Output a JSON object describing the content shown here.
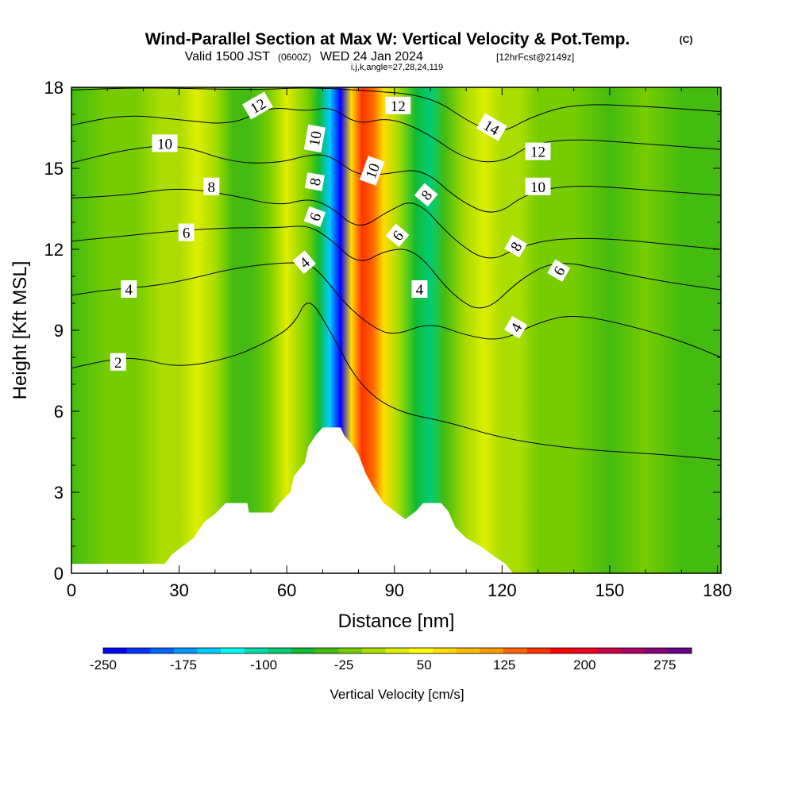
{
  "title": {
    "main": "Wind-Parallel Section at Max W: Vertical Velocity & Pot.Temp.",
    "copyright": "(C)",
    "valid_prefix": "Valid 1500 JST",
    "utc": "(0600Z)",
    "valid_suffix": "WED 24 Jan 2024",
    "fcst": "[12hrFcst@2149z]",
    "ijk": "i,j,k,angle=27,28,24,119"
  },
  "colors": {
    "background": "#ffffff",
    "terrain": "#ffffff",
    "contour": "#000000",
    "palette": [
      "#0000ff",
      "#0033ff",
      "#0066ff",
      "#0099ff",
      "#00ccff",
      "#00ffee",
      "#00ddaa",
      "#00cc77",
      "#11bb33",
      "#44bb11",
      "#77cc00",
      "#aadd00",
      "#ddee00",
      "#ffff00",
      "#ffdd00",
      "#ffbb00",
      "#ff9900",
      "#ff6600",
      "#ff3300",
      "#ff0000",
      "#ee0022",
      "#cc0044",
      "#aa0066",
      "#880077",
      "#660088"
    ]
  },
  "chart_data": {
    "type": "heatmap",
    "title": "Wind-Parallel Section at Max W: Vertical Velocity & Pot.Temp.",
    "xlabel": "Distance [nm]",
    "ylabel": "Height [Kft MSL]",
    "xlim": [
      0,
      181
    ],
    "ylim": [
      0,
      18
    ],
    "xticks": [
      "0",
      "30",
      "60",
      "90",
      "120",
      "150",
      "180"
    ],
    "yticks": [
      "0",
      "3",
      "6",
      "9",
      "12",
      "15",
      "18"
    ],
    "colorbar": {
      "label": "Vertical Velocity [cm/s]",
      "min": -250,
      "max": 300,
      "step": 25,
      "ticks": [
        "-250",
        "-175",
        "-100",
        "-25",
        "50",
        "125",
        "200",
        "275"
      ]
    },
    "vertical_velocity_bands": [
      {
        "x": 0,
        "w": -5
      },
      {
        "x": 10,
        "w": 5
      },
      {
        "x": 18,
        "w": 10
      },
      {
        "x": 25,
        "w": 30
      },
      {
        "x": 30,
        "w": 45
      },
      {
        "x": 35,
        "w": 50
      },
      {
        "x": 40,
        "w": 30
      },
      {
        "x": 45,
        "w": -20
      },
      {
        "x": 50,
        "w": -10
      },
      {
        "x": 55,
        "w": 10
      },
      {
        "x": 60,
        "w": 55
      },
      {
        "x": 63,
        "w": 40
      },
      {
        "x": 66,
        "w": 0
      },
      {
        "x": 69,
        "w": -50
      },
      {
        "x": 72,
        "w": -150
      },
      {
        "x": 75,
        "w": -230
      },
      {
        "x": 78,
        "w": 120
      },
      {
        "x": 81,
        "w": 220
      },
      {
        "x": 84,
        "w": 190
      },
      {
        "x": 87,
        "w": 120
      },
      {
        "x": 91,
        "w": 40
      },
      {
        "x": 96,
        "w": -30
      },
      {
        "x": 100,
        "w": -70
      },
      {
        "x": 104,
        "w": -20
      },
      {
        "x": 110,
        "w": 40
      },
      {
        "x": 115,
        "w": 55
      },
      {
        "x": 120,
        "w": 45
      },
      {
        "x": 125,
        "w": 30
      },
      {
        "x": 130,
        "w": 20
      },
      {
        "x": 140,
        "w": 10
      },
      {
        "x": 150,
        "w": -5
      },
      {
        "x": 160,
        "w": 5
      },
      {
        "x": 170,
        "w": -15
      },
      {
        "x": 181,
        "w": -10
      }
    ],
    "terrain_profile": [
      {
        "x": 0,
        "h": 0.35
      },
      {
        "x": 26,
        "h": 0.35
      },
      {
        "x": 28,
        "h": 0.7
      },
      {
        "x": 31,
        "h": 1.0
      },
      {
        "x": 34,
        "h": 1.3
      },
      {
        "x": 37,
        "h": 1.9
      },
      {
        "x": 40,
        "h": 2.2
      },
      {
        "x": 43,
        "h": 2.6
      },
      {
        "x": 49,
        "h": 2.6
      },
      {
        "x": 49.5,
        "h": 2.25
      },
      {
        "x": 56,
        "h": 2.25
      },
      {
        "x": 58,
        "h": 2.6
      },
      {
        "x": 61,
        "h": 3.0
      },
      {
        "x": 62,
        "h": 3.6
      },
      {
        "x": 65,
        "h": 4.1
      },
      {
        "x": 66,
        "h": 4.7
      },
      {
        "x": 68,
        "h": 5.1
      },
      {
        "x": 70,
        "h": 5.4
      },
      {
        "x": 75,
        "h": 5.4
      },
      {
        "x": 76,
        "h": 5.1
      },
      {
        "x": 78,
        "h": 4.8
      },
      {
        "x": 80,
        "h": 4.4
      },
      {
        "x": 82,
        "h": 3.7
      },
      {
        "x": 84,
        "h": 3.2
      },
      {
        "x": 87,
        "h": 2.6
      },
      {
        "x": 90,
        "h": 2.3
      },
      {
        "x": 93,
        "h": 2.0
      },
      {
        "x": 96,
        "h": 2.3
      },
      {
        "x": 98,
        "h": 2.6
      },
      {
        "x": 103,
        "h": 2.6
      },
      {
        "x": 105,
        "h": 2.3
      },
      {
        "x": 107,
        "h": 1.7
      },
      {
        "x": 110,
        "h": 1.3
      },
      {
        "x": 114,
        "h": 1.0
      },
      {
        "x": 117,
        "h": 0.7
      },
      {
        "x": 121,
        "h": 0.35
      },
      {
        "x": 123,
        "h": 0.0
      },
      {
        "x": 181,
        "h": 0.0
      }
    ],
    "theta_contours": [
      {
        "level": "2",
        "points": [
          [
            0,
            7.6
          ],
          [
            10,
            7.9
          ],
          [
            18,
            8.0
          ],
          [
            30,
            7.6
          ],
          [
            45,
            8.0
          ],
          [
            55,
            8.6
          ],
          [
            62,
            9.2
          ],
          [
            66,
            10.3
          ],
          [
            72,
            9.0
          ],
          [
            80,
            7.0
          ],
          [
            90,
            6.0
          ],
          [
            105,
            5.6
          ],
          [
            120,
            5.0
          ],
          [
            140,
            4.6
          ],
          [
            165,
            4.4
          ],
          [
            181,
            4.2
          ]
        ]
      },
      {
        "level": "4",
        "points": [
          [
            0,
            10.3
          ],
          [
            10,
            10.5
          ],
          [
            20,
            10.6
          ],
          [
            30,
            10.8
          ],
          [
            45,
            11.3
          ],
          [
            58,
            11.5
          ],
          [
            65,
            11.5
          ],
          [
            69,
            11.2
          ],
          [
            76,
            10.0
          ],
          [
            84,
            9.1
          ],
          [
            90,
            8.8
          ],
          [
            100,
            9.3
          ],
          [
            110,
            8.8
          ],
          [
            120,
            8.6
          ],
          [
            130,
            9.3
          ],
          [
            140,
            9.6
          ],
          [
            155,
            9.2
          ],
          [
            170,
            8.6
          ],
          [
            181,
            8.0
          ]
        ]
      },
      {
        "level": "6",
        "points": [
          [
            0,
            12.3
          ],
          [
            15,
            12.5
          ],
          [
            30,
            12.7
          ],
          [
            45,
            12.8
          ],
          [
            58,
            12.8
          ],
          [
            66,
            12.9
          ],
          [
            72,
            12.4
          ],
          [
            80,
            11.4
          ],
          [
            88,
            12.0
          ],
          [
            96,
            12.0
          ],
          [
            106,
            10.3
          ],
          [
            115,
            9.6
          ],
          [
            125,
            10.9
          ],
          [
            135,
            11.6
          ],
          [
            150,
            11.2
          ],
          [
            165,
            10.8
          ],
          [
            181,
            10.5
          ]
        ]
      },
      {
        "level": "8",
        "points": [
          [
            0,
            13.9
          ],
          [
            15,
            14.0
          ],
          [
            30,
            14.3
          ],
          [
            45,
            14.0
          ],
          [
            58,
            13.6
          ],
          [
            66,
            13.9
          ],
          [
            72,
            13.6
          ],
          [
            80,
            12.7
          ],
          [
            88,
            13.4
          ],
          [
            96,
            13.9
          ],
          [
            106,
            12.4
          ],
          [
            116,
            11.5
          ],
          [
            125,
            12.1
          ],
          [
            135,
            12.4
          ],
          [
            150,
            12.4
          ],
          [
            165,
            12.2
          ],
          [
            181,
            12.0
          ]
        ]
      },
      {
        "level": "10",
        "points": [
          [
            0,
            15.2
          ],
          [
            15,
            15.7
          ],
          [
            30,
            15.9
          ],
          [
            45,
            15.2
          ],
          [
            58,
            15.2
          ],
          [
            66,
            15.5
          ],
          [
            72,
            15.5
          ],
          [
            80,
            14.7
          ],
          [
            88,
            14.8
          ],
          [
            98,
            15.0
          ],
          [
            108,
            13.8
          ],
          [
            118,
            13.2
          ],
          [
            127,
            14.1
          ],
          [
            140,
            14.4
          ],
          [
            160,
            14.2
          ],
          [
            181,
            14.0
          ]
        ]
      },
      {
        "level": "12",
        "points": [
          [
            0,
            16.6
          ],
          [
            15,
            17.0
          ],
          [
            30,
            16.8
          ],
          [
            45,
            16.6
          ],
          [
            55,
            17.3
          ],
          [
            66,
            17.1
          ],
          [
            72,
            17.3
          ],
          [
            80,
            16.6
          ],
          [
            88,
            16.9
          ],
          [
            98,
            16.4
          ],
          [
            110,
            15.3
          ],
          [
            120,
            15.2
          ],
          [
            128,
            15.9
          ],
          [
            140,
            16.1
          ],
          [
            160,
            15.9
          ],
          [
            181,
            15.7
          ]
        ]
      },
      {
        "level": "14",
        "points": [
          [
            0,
            17.9
          ],
          [
            20,
            18.0
          ],
          [
            50,
            17.9
          ],
          [
            66,
            18.0
          ],
          [
            80,
            17.9
          ],
          [
            100,
            17.7
          ],
          [
            112,
            16.6
          ],
          [
            120,
            16.3
          ],
          [
            128,
            16.9
          ],
          [
            140,
            17.4
          ],
          [
            160,
            17.3
          ],
          [
            181,
            17.1
          ]
        ]
      }
    ],
    "contour_labels": [
      {
        "text": "2",
        "x": 13,
        "y": 7.8,
        "angle": 0
      },
      {
        "text": "4",
        "x": 16,
        "y": 10.5,
        "angle": 0
      },
      {
        "text": "6",
        "x": 32,
        "y": 12.6,
        "angle": 0
      },
      {
        "text": "8",
        "x": 39,
        "y": 14.3,
        "angle": 0
      },
      {
        "text": "10",
        "x": 26,
        "y": 15.9,
        "angle": 0
      },
      {
        "text": "12",
        "x": 52,
        "y": 17.3,
        "angle": -30
      },
      {
        "text": "4",
        "x": 65,
        "y": 11.5,
        "angle": -40
      },
      {
        "text": "6",
        "x": 68,
        "y": 13.2,
        "angle": -70
      },
      {
        "text": "8",
        "x": 68,
        "y": 14.5,
        "angle": -80
      },
      {
        "text": "10",
        "x": 68,
        "y": 16.1,
        "angle": -80
      },
      {
        "text": "10",
        "x": 84,
        "y": 14.9,
        "angle": -70
      },
      {
        "text": "12",
        "x": 91,
        "y": 17.3,
        "angle": 0
      },
      {
        "text": "6",
        "x": 91,
        "y": 12.5,
        "angle": -50
      },
      {
        "text": "8",
        "x": 99,
        "y": 14.0,
        "angle": -50
      },
      {
        "text": "4",
        "x": 97,
        "y": 10.5,
        "angle": 0
      },
      {
        "text": "14",
        "x": 117,
        "y": 16.5,
        "angle": 30
      },
      {
        "text": "12",
        "x": 130,
        "y": 15.6,
        "angle": 0
      },
      {
        "text": "10",
        "x": 130,
        "y": 14.3,
        "angle": 0
      },
      {
        "text": "8",
        "x": 124,
        "y": 12.1,
        "angle": -60
      },
      {
        "text": "6",
        "x": 136,
        "y": 11.2,
        "angle": -60
      },
      {
        "text": "4",
        "x": 124,
        "y": 9.1,
        "angle": -60
      }
    ]
  }
}
